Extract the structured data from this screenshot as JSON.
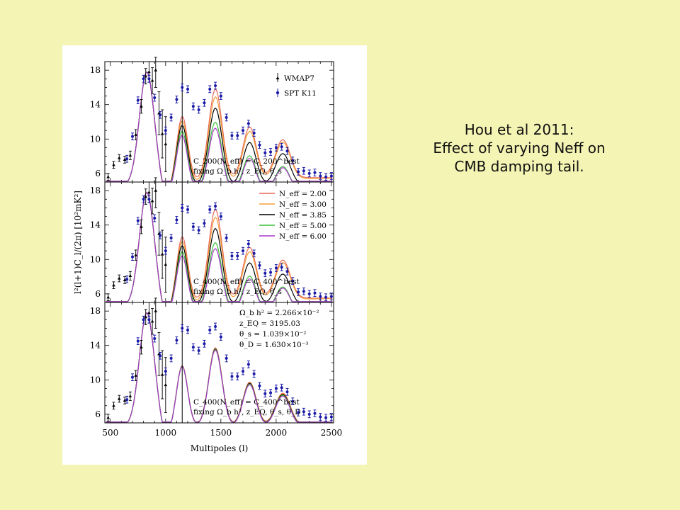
{
  "caption": {
    "line1": "Hou et al 2011:",
    "line2": "Effect of varying Neff on",
    "line3": "CMB damping tail."
  },
  "chart_data": {
    "type": "scatter",
    "xlabel": "Multipoles (l)",
    "ylabel": "l²(l+1)C_l/(2π) [10²mK²]",
    "xlim": [
      450,
      2520
    ],
    "ylim": [
      5,
      19
    ],
    "x_ticks": [
      "500",
      "1000",
      "1500",
      "2000",
      "2500"
    ],
    "y_ticks": [
      "6",
      "10",
      "14",
      "18"
    ],
    "vline_x": 1150,
    "colors": {
      "wmap": "#000000",
      "spt": "#1a1aa8",
      "neff_2": "#e8685a",
      "neff_3": "#f4a038",
      "neff_385": "#000000",
      "neff_5": "#3ac03a",
      "neff_6": "#a838c8"
    },
    "data_legend": [
      "WMAP7",
      "SPT K11"
    ],
    "neff_legend": [
      "N_eff = 2.00",
      "N_eff = 3.00",
      "N_eff = 3.85",
      "N_eff = 5.00",
      "N_eff = 6.00"
    ],
    "neff_values": [
      2.0,
      3.0,
      3.85,
      5.0,
      6.0
    ],
    "panel_notes": [
      [
        "C_200(N_eff) = C_200^best",
        "fixing Ω_b h², z_EQ, θ_s"
      ],
      [
        "C_400(N_eff) = C_400^best",
        "fixing Ω_b h², z_EQ, θ_s"
      ],
      [
        "C_400(N_eff) = C_400^best",
        "fixing Ω_b h², z_EQ, θ_s, θ_D"
      ]
    ],
    "param_text": [
      "Ω_b h² = 2.266×10⁻²",
      "z_EQ = 3195.03",
      "θ_s = 1.039×10⁻²",
      "θ_D = 1.630×10⁻³"
    ],
    "wmap7": {
      "x": [
        480,
        530,
        580,
        630,
        680,
        730,
        780,
        820,
        850,
        880,
        910,
        940,
        970,
        1000
      ],
      "y": [
        5.6,
        7.0,
        7.8,
        7.6,
        8.1,
        10.5,
        13.8,
        17.3,
        17.8,
        16.8,
        18.0,
        13.0,
        10.6,
        9.4
      ],
      "err": [
        0.4,
        0.4,
        0.4,
        0.4,
        0.5,
        0.6,
        0.8,
        0.9,
        1.2,
        1.5,
        2.0,
        2.5,
        2.8,
        3.2
      ]
    },
    "spt_k11": {
      "x": [
        650,
        700,
        750,
        800,
        850,
        900,
        950,
        1000,
        1050,
        1100,
        1150,
        1200,
        1250,
        1300,
        1350,
        1400,
        1450,
        1500,
        1550,
        1600,
        1650,
        1700,
        1750,
        1800,
        1850,
        1900,
        1950,
        2000,
        2050,
        2100,
        2150,
        2200,
        2250,
        2300,
        2350,
        2400,
        2450,
        2500
      ],
      "y": [
        7.7,
        10.3,
        14.5,
        17.0,
        17.0,
        14.8,
        12.8,
        11.0,
        12.5,
        14.6,
        16.0,
        15.8,
        13.8,
        13.4,
        14.2,
        15.8,
        16.2,
        15.0,
        12.5,
        10.4,
        10.4,
        11.0,
        11.8,
        10.7,
        9.3,
        8.4,
        8.5,
        9.0,
        9.1,
        8.6,
        7.5,
        6.2,
        6.3,
        6.0,
        6.1,
        5.7,
        5.6,
        5.7
      ],
      "err": [
        0.4,
        0.4,
        0.4,
        0.4,
        0.4,
        0.4,
        0.4,
        0.4,
        0.4,
        0.4,
        0.4,
        0.4,
        0.4,
        0.4,
        0.4,
        0.4,
        0.4,
        0.4,
        0.4,
        0.4,
        0.4,
        0.4,
        0.4,
        0.4,
        0.4,
        0.4,
        0.4,
        0.4,
        0.4,
        0.4,
        0.4,
        0.4,
        0.4,
        0.4,
        0.4,
        0.4,
        0.4,
        0.4
      ]
    }
  }
}
